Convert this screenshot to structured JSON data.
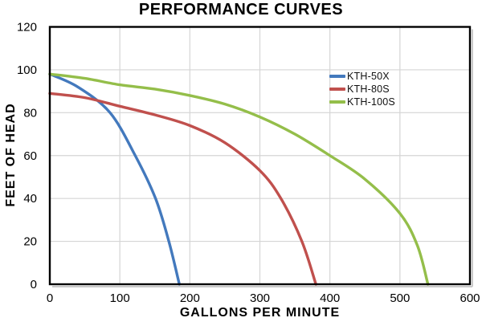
{
  "page": {
    "background": "#FFFFFF"
  },
  "chart_data": {
    "type": "line",
    "title": "PERFORMANCE CURVES",
    "xlabel": "GALLONS PER MINUTE",
    "ylabel": "FEET OF HEAD",
    "xlim": [
      0,
      600
    ],
    "ylim": [
      0,
      120
    ],
    "x_ticks": [
      0,
      100,
      200,
      300,
      400,
      500,
      600
    ],
    "y_ticks": [
      0,
      20,
      40,
      60,
      80,
      100,
      120
    ],
    "grid": true,
    "gridline_color": "#D5D5D5",
    "plot_border_color": "#000000",
    "shadow_color": "#C9C9C9",
    "legend_position": "inside-top-right",
    "series": [
      {
        "name": "KTH-50X",
        "color": "#4379BD",
        "points": [
          [
            0,
            98
          ],
          [
            40,
            92
          ],
          [
            86,
            80
          ],
          [
            122,
            60
          ],
          [
            151,
            40
          ],
          [
            170,
            20
          ],
          [
            185,
            0
          ]
        ]
      },
      {
        "name": "KTH-80S",
        "color": "#C0504D",
        "points": [
          [
            0,
            89
          ],
          [
            50,
            87
          ],
          [
            100,
            83
          ],
          [
            150,
            79
          ],
          [
            200,
            74
          ],
          [
            250,
            66
          ],
          [
            300,
            53
          ],
          [
            330,
            40
          ],
          [
            360,
            20
          ],
          [
            380,
            0
          ]
        ]
      },
      {
        "name": "KTH-100S",
        "color": "#94BE4A",
        "points": [
          [
            0,
            98
          ],
          [
            50,
            96
          ],
          [
            100,
            93
          ],
          [
            150,
            91
          ],
          [
            200,
            88
          ],
          [
            250,
            84
          ],
          [
            300,
            78
          ],
          [
            350,
            70
          ],
          [
            400,
            60
          ],
          [
            450,
            49
          ],
          [
            500,
            33
          ],
          [
            525,
            18
          ],
          [
            540,
            0
          ]
        ]
      }
    ]
  }
}
